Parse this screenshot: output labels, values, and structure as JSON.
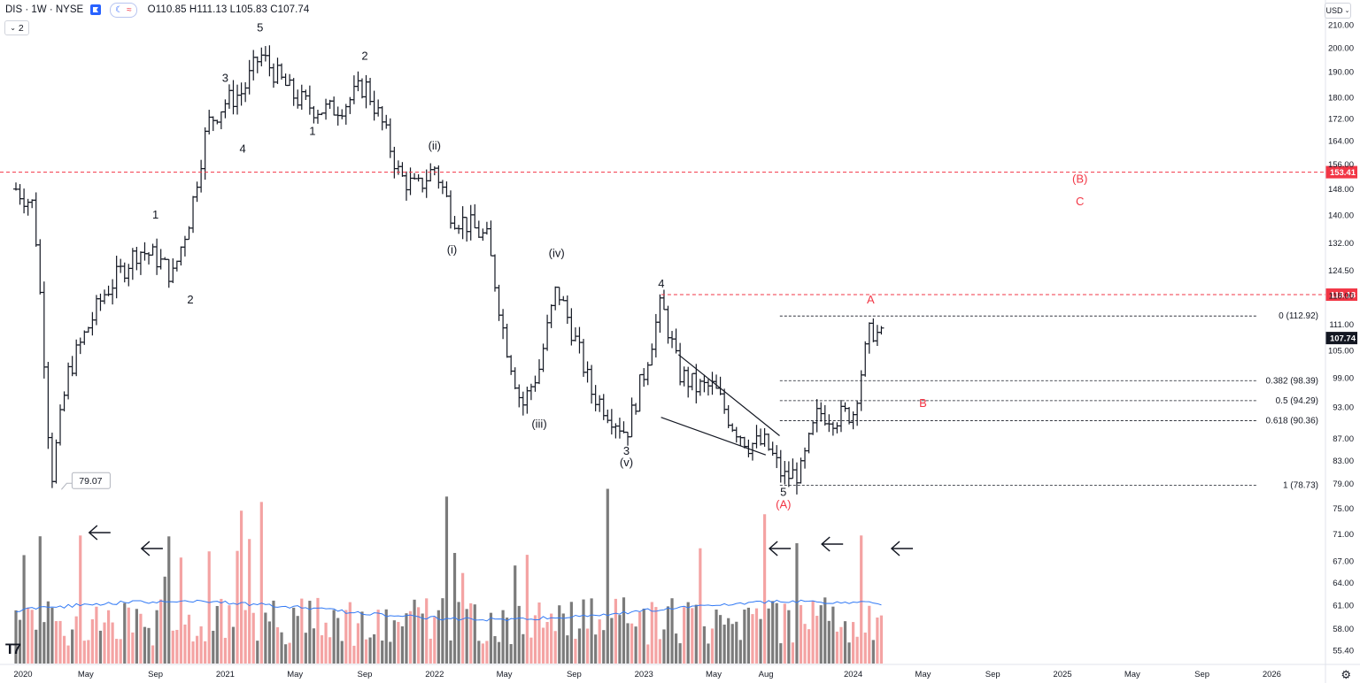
{
  "header": {
    "symbol": "DIS · 1W · NYSE",
    "ohlc": "O110.85  H111.13  L105.83  C107.74",
    "interval_multiplier": "2",
    "currency": "USD"
  },
  "colors": {
    "up_volume": "#f4a3a3",
    "down_volume": "#7b7b7b",
    "ma_line": "#3179f5",
    "bars": "#131722",
    "red": "#f23645",
    "fib": "#131722"
  },
  "icons": [
    "flag-icon",
    "sun-icon",
    "wave-icon",
    "chevron-down-icon",
    "settings-icon",
    "tradingview-logo"
  ],
  "chart_data": {
    "type": "ohlc",
    "title": "",
    "y_axis_ticks": [
      "210.00",
      "200.00",
      "190.00",
      "180.00",
      "172.00",
      "164.00",
      "156.00",
      "148.00",
      "140.00",
      "132.00",
      "124.50",
      "118.00",
      "111.00",
      "105.00",
      "99.00",
      "93.00",
      "87.00",
      "83.00",
      "79.00",
      "75.00",
      "71.00",
      "67.00",
      "64.00",
      "61.00",
      "58.00",
      "55.40"
    ],
    "x_axis_ticks": [
      "2020",
      "May",
      "Sep",
      "2021",
      "May",
      "Sep",
      "2022",
      "May",
      "Sep",
      "2023",
      "May",
      "Aug",
      "2024",
      "May",
      "Sep",
      "2025",
      "May",
      "Sep",
      "2026"
    ],
    "price_anchors": [
      [
        "2020-01",
        148
      ],
      [
        "2020-02",
        143
      ],
      [
        "2020-03",
        79
      ],
      [
        "2020-04",
        100
      ],
      [
        "2020-06",
        118
      ],
      [
        "2020-08",
        130
      ],
      [
        "2020-09",
        128
      ],
      [
        "2020-10",
        123
      ],
      [
        "2020-11",
        140
      ],
      [
        "2020-12",
        170
      ],
      [
        "2021-01",
        178
      ],
      [
        "2021-02",
        182
      ],
      [
        "2021-03",
        197
      ],
      [
        "2021-04",
        188
      ],
      [
        "2021-05",
        180
      ],
      [
        "2021-06",
        176
      ],
      [
        "2021-07",
        175
      ],
      [
        "2021-08",
        178
      ],
      [
        "2021-09",
        185
      ],
      [
        "2021-10",
        170
      ],
      [
        "2021-11",
        152
      ],
      [
        "2021-12",
        148
      ],
      [
        "2022-01",
        155
      ],
      [
        "2022-02",
        140
      ],
      [
        "2022-03",
        137
      ],
      [
        "2022-04",
        133
      ],
      [
        "2022-05",
        108
      ],
      [
        "2022-06",
        93
      ],
      [
        "2022-07",
        101
      ],
      [
        "2022-08",
        120
      ],
      [
        "2022-09",
        108
      ],
      [
        "2022-10",
        96
      ],
      [
        "2022-11",
        92
      ],
      [
        "2022-12",
        88
      ],
      [
        "2023-01",
        100
      ],
      [
        "2023-02",
        116
      ],
      [
        "2023-03",
        100
      ],
      [
        "2023-04",
        97
      ],
      [
        "2023-05",
        97
      ],
      [
        "2023-06",
        90
      ],
      [
        "2023-07",
        86
      ],
      [
        "2023-08",
        86
      ],
      [
        "2023-09",
        80
      ],
      [
        "2023-10",
        81
      ],
      [
        "2023-11",
        92
      ],
      [
        "2023-12",
        91
      ],
      [
        "2024-01",
        92
      ],
      [
        "2024-02",
        110
      ],
      [
        "2024-02-20",
        107.74
      ]
    ],
    "horizontal_levels": [
      {
        "label": "153.41",
        "price": 153.41,
        "style": "dashed",
        "color": "red"
      },
      {
        "label": "118.18",
        "price": 118.18,
        "style": "dashed",
        "color": "red"
      }
    ],
    "fibonacci": [
      {
        "label": "0 (112.92)",
        "price": 112.92
      },
      {
        "label": "0.382 (98.39)",
        "price": 98.39
      },
      {
        "label": "0.5 (94.29)",
        "price": 94.29
      },
      {
        "label": "0.618 (90.36)",
        "price": 90.36
      },
      {
        "label": "1 (78.73)",
        "price": 78.73
      }
    ],
    "current_price_label": "107.74",
    "low_annotation": "79.07",
    "wave_labels": [
      {
        "text": "5",
        "date": "2021-03",
        "price": 207,
        "color": "black"
      },
      {
        "text": "3",
        "date": "2021-01",
        "price": 186,
        "color": "black"
      },
      {
        "text": "4",
        "date": "2021-02",
        "price": 160,
        "color": "black"
      },
      {
        "text": "1",
        "date": "2020-09",
        "price": 139,
        "color": "black"
      },
      {
        "text": "2",
        "date": "2020-11",
        "price": 116,
        "color": "black"
      },
      {
        "text": "2",
        "date": "2021-09",
        "price": 195,
        "color": "black"
      },
      {
        "text": "1",
        "date": "2021-06",
        "price": 166,
        "color": "black"
      },
      {
        "text": "(ii)",
        "date": "2022-01",
        "price": 161,
        "color": "black"
      },
      {
        "text": "(i)",
        "date": "2022-02",
        "price": 129,
        "color": "black"
      },
      {
        "text": "(iv)",
        "date": "2022-08",
        "price": 128,
        "color": "black"
      },
      {
        "text": "(iii)",
        "date": "2022-07",
        "price": 89,
        "color": "black"
      },
      {
        "text": "3",
        "date": "2022-12",
        "price": 84,
        "color": "black"
      },
      {
        "text": "(v)",
        "date": "2022-12",
        "price": 82,
        "color": "black"
      },
      {
        "text": "4",
        "date": "2023-02",
        "price": 120,
        "color": "black"
      },
      {
        "text": "5",
        "date": "2023-09",
        "price": 77,
        "color": "black"
      },
      {
        "text": "(A)",
        "date": "2023-09",
        "price": 75,
        "color": "red"
      },
      {
        "text": "A",
        "date": "2024-02",
        "price": 116,
        "color": "red"
      },
      {
        "text": "B",
        "date": "2024-05",
        "price": 93,
        "color": "red"
      },
      {
        "text": "(B)",
        "date": "2025-02",
        "price": 150,
        "color": "red"
      },
      {
        "text": "C",
        "date": "2025-02",
        "price": 143,
        "color": "red"
      }
    ],
    "volume": {
      "pattern": "weekly bars, pink = up week, gray = down week, blue moving-average line",
      "arrows": [
        "2020-05",
        "2020-08",
        "2023-08",
        "2023-11",
        "2024-03"
      ]
    },
    "grid": false,
    "legend": "none"
  }
}
